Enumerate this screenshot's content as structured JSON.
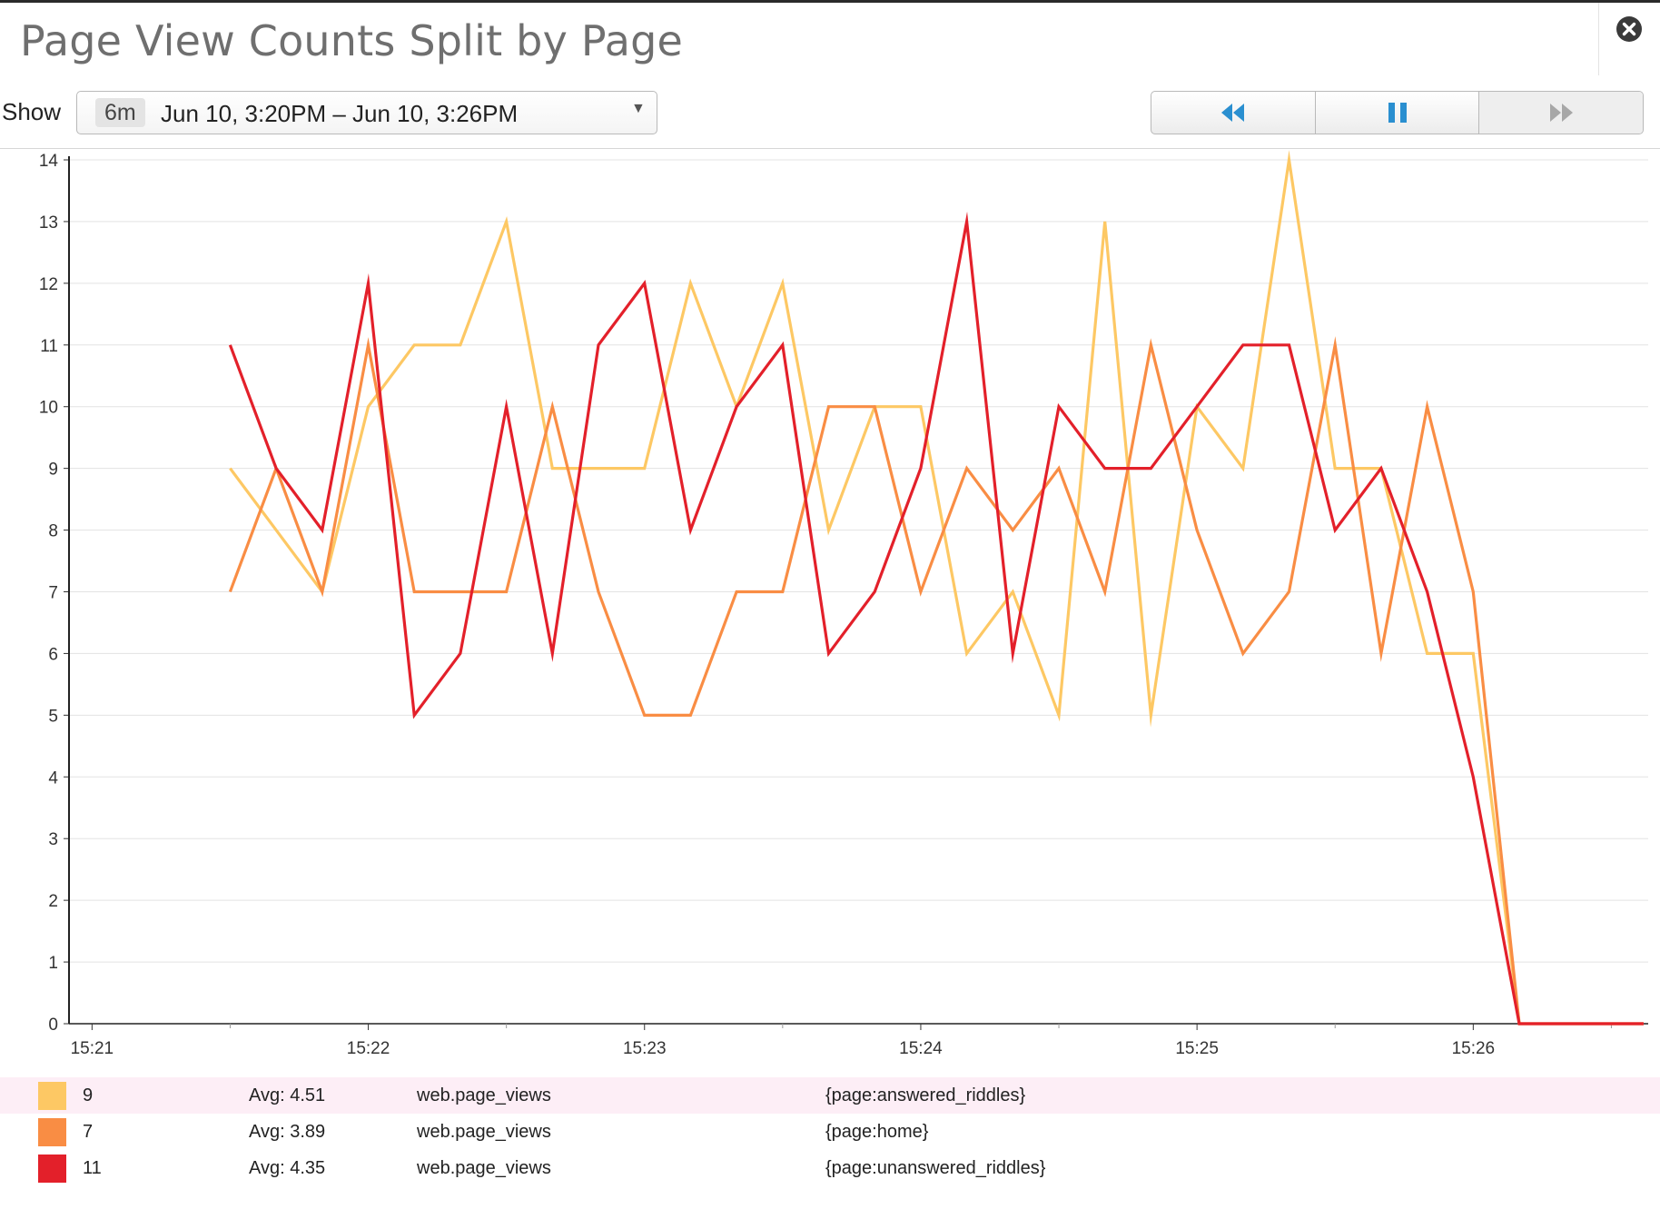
{
  "panel": {
    "title": "Page View Counts Split by Page"
  },
  "controls": {
    "show_label": "Show",
    "range_badge": "6m",
    "range_text": "Jun 10, 3:20PM – Jun 10, 3:26PM"
  },
  "playback": {
    "icons": [
      "rewind-icon",
      "pause-icon",
      "fast-forward-icon"
    ],
    "accent": "#2a8fd0"
  },
  "chart_data": {
    "type": "line",
    "title": "Page View Counts Split by Page",
    "xlabel": "",
    "ylabel": "",
    "x_ticks": [
      "15:21",
      "15:22",
      "15:23",
      "15:24",
      "15:25",
      "15:26"
    ],
    "x_tick_values": [
      0,
      60,
      120,
      180,
      240,
      300
    ],
    "xlim": [
      -5,
      338
    ],
    "ylim": [
      0,
      14
    ],
    "y_ticks": [
      0,
      1,
      2,
      3,
      4,
      5,
      6,
      7,
      8,
      9,
      10,
      11,
      12,
      13,
      14
    ],
    "grid": true,
    "legend_position": "bottom",
    "x_seconds_after_1521": [
      30,
      40,
      50,
      60,
      70,
      80,
      90,
      100,
      110,
      120,
      130,
      140,
      150,
      160,
      170,
      180,
      190,
      200,
      210,
      220,
      230,
      240,
      250,
      260,
      270,
      280,
      290,
      300,
      310,
      320,
      330,
      337
    ],
    "series": [
      {
        "name": "{page:answered_riddles}",
        "color": "#fdc864",
        "values": [
          9,
          8,
          7,
          10,
          11,
          11,
          13,
          9,
          9,
          9,
          12,
          10,
          12,
          8,
          10,
          10,
          6,
          7,
          5,
          13,
          5,
          10,
          9,
          14,
          9,
          9,
          6,
          6,
          0,
          0,
          0,
          0
        ]
      },
      {
        "name": "{page:home}",
        "color": "#f98d44",
        "values": [
          7,
          9,
          7,
          11,
          7,
          7,
          7,
          10,
          7,
          5,
          5,
          7,
          7,
          10,
          10,
          7,
          9,
          8,
          9,
          7,
          11,
          8,
          6,
          7,
          11,
          6,
          10,
          7,
          0,
          0,
          0,
          0
        ]
      },
      {
        "name": "{page:unanswered_riddles}",
        "color": "#e3202a",
        "values": [
          11,
          9,
          8,
          12,
          5,
          6,
          10,
          6,
          11,
          12,
          8,
          10,
          11,
          6,
          7,
          9,
          13,
          6,
          10,
          9,
          9,
          10,
          11,
          11,
          8,
          9,
          7,
          4,
          0,
          0,
          0,
          0
        ]
      }
    ]
  },
  "legend": [
    {
      "value": "9",
      "avg": "Avg: 4.51",
      "metric": "web.page_views",
      "tag": "{page:answered_riddles}",
      "color": "#fdc864",
      "highlight": true
    },
    {
      "value": "7",
      "avg": "Avg: 3.89",
      "metric": "web.page_views",
      "tag": "{page:home}",
      "color": "#f98d44",
      "highlight": false
    },
    {
      "value": "11",
      "avg": "Avg: 4.35",
      "metric": "web.page_views",
      "tag": "{page:unanswered_riddles}",
      "color": "#e3202a",
      "highlight": false
    }
  ]
}
